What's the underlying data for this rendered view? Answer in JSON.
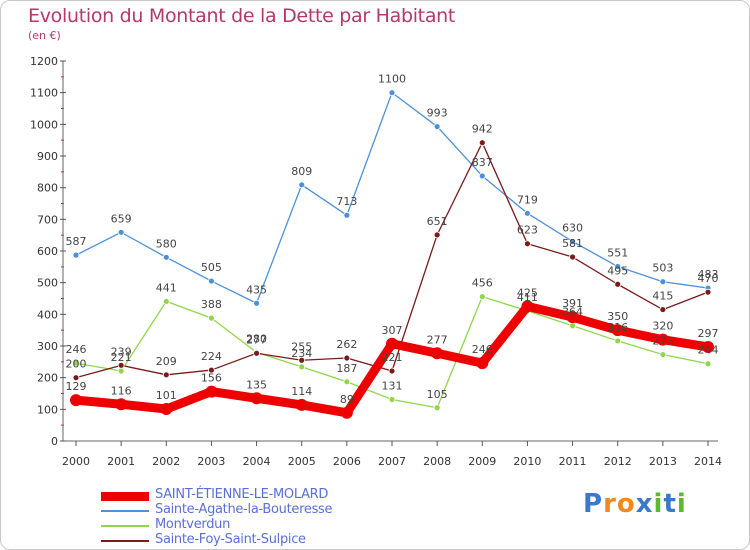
{
  "header": {
    "title": "Evolution du Montant de la Dette par Habitant",
    "subtitle": "(en €)"
  },
  "logo": {
    "letters": [
      "P",
      "r",
      "o",
      "x",
      "i",
      "t",
      "i"
    ],
    "colors": [
      "#3a78c9",
      "#f08a1c",
      "#f08a1c",
      "#3a78c9",
      "#5cb82c",
      "#3a78c9",
      "#5cb82c"
    ]
  },
  "chart_data": {
    "type": "line",
    "x": [
      "2000",
      "2001",
      "2002",
      "2003",
      "2004",
      "2005",
      "2006",
      "2007",
      "2008",
      "2009",
      "2010",
      "2011",
      "2012",
      "2013",
      "2014"
    ],
    "ylim": [
      0,
      1200
    ],
    "yticks": [
      0,
      100,
      200,
      300,
      400,
      500,
      600,
      700,
      800,
      900,
      1000,
      1100,
      1200
    ],
    "grid": false,
    "legend_position": "bottom-left",
    "series": [
      {
        "name": "SAINT-ÉTIENNE-LE-MOLARD",
        "color": "#ee0000",
        "values": [
          129,
          116,
          101,
          156,
          135,
          114,
          89,
          307,
          277,
          246,
          425,
          391,
          350,
          320,
          297
        ]
      },
      {
        "name": "Sainte-Agathe-la-Bouteresse",
        "color": "#4d90d8",
        "values": [
          587,
          659,
          580,
          505,
          435,
          809,
          713,
          1100,
          993,
          837,
          719,
          630,
          551,
          503,
          483
        ]
      },
      {
        "name": "Montverdun",
        "color": "#8fd64a",
        "values": [
          246,
          221,
          441,
          388,
          280,
          234,
          187,
          131,
          105,
          456,
          411,
          364,
          316,
          273,
          244
        ]
      },
      {
        "name": "Sainte-Foy-Saint-Sulpice",
        "color": "#7a1a1a",
        "values": [
          200,
          239,
          209,
          224,
          277,
          255,
          262,
          221,
          651,
          942,
          623,
          581,
          495,
          415,
          470
        ]
      }
    ]
  }
}
